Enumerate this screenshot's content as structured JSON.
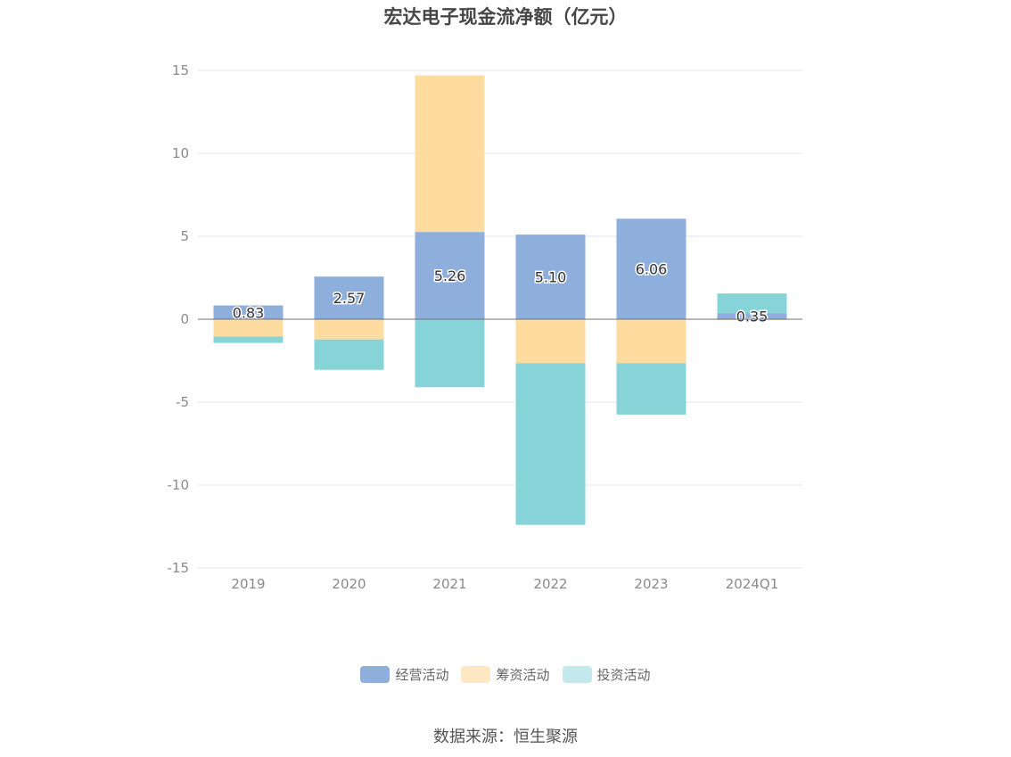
{
  "source_label": "数据来源：恒生聚源",
  "colors": {
    "operating": "#8eaedb",
    "financing": "#fedb9e",
    "investing": "#87d4d8",
    "investing_legend": "#c3e9ec",
    "financing_legend": "#fde8c6",
    "grid": "#e0e4ef",
    "zero_line": "#6e7079",
    "tick_text": "#8a8a8a"
  },
  "chart_data": {
    "type": "bar",
    "stacked": true,
    "title": "宏达电子现金流净额（亿元）",
    "xlabel": "",
    "ylabel": "",
    "categories": [
      "2019",
      "2020",
      "2021",
      "2022",
      "2023",
      "2024Q1"
    ],
    "ylim": [
      -15,
      15
    ],
    "yticks": [
      15,
      10,
      5,
      0,
      -5,
      -10,
      -15
    ],
    "grid": true,
    "legend_position": "bottom",
    "series": [
      {
        "name": "经营活动",
        "values": [
          0.83,
          2.57,
          5.26,
          5.1,
          6.06,
          0.35
        ],
        "labels": [
          "0.83",
          "2.57",
          "5.26",
          "5.10",
          "6.06",
          "0.35"
        ]
      },
      {
        "name": "筹资活动",
        "values": [
          -1.05,
          -1.22,
          9.44,
          -2.65,
          -2.65,
          -0.05
        ]
      },
      {
        "name": "投资活动",
        "values": [
          -0.38,
          -1.83,
          -4.1,
          -9.75,
          -3.1,
          1.2
        ]
      }
    ]
  }
}
